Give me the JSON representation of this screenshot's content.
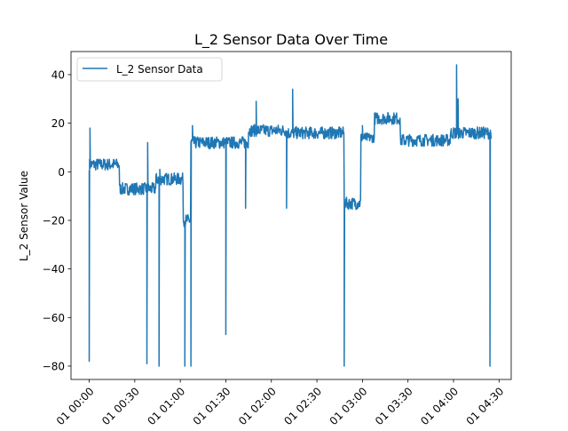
{
  "chart_data": {
    "type": "line",
    "title": "L_2 Sensor Data Over Time",
    "xlabel": "",
    "ylabel": "L_2 Sensor Value",
    "x_tick_labels": [
      "01 00:00",
      "01 00:30",
      "01 01:00",
      "01 01:30",
      "01 02:00",
      "01 02:30",
      "01 03:00",
      "01 03:30",
      "01 04:00",
      "01 04:30"
    ],
    "x_ticks_minutes": [
      0,
      30,
      60,
      90,
      120,
      150,
      180,
      210,
      240,
      270
    ],
    "xlim_minutes": [
      -12,
      278
    ],
    "y_ticks": [
      -80,
      -60,
      -40,
      -20,
      0,
      20,
      40
    ],
    "ylim": [
      -85.5,
      49.5
    ],
    "grid": false,
    "legend": {
      "position": "top-left",
      "entries": [
        "L_2 Sensor Data"
      ]
    },
    "colors": {
      "series": "#1f77b4"
    },
    "series": [
      {
        "name": "L_2 Sensor Data",
        "segments": [
          {
            "t0": 0,
            "t1": 20,
            "level": 3,
            "band": 5
          },
          {
            "t0": 20,
            "t1": 44,
            "level": -7,
            "band": 5
          },
          {
            "t0": 44,
            "t1": 62,
            "level": -3,
            "band": 5
          },
          {
            "t0": 62,
            "t1": 67,
            "level": -20,
            "band": 5
          },
          {
            "t0": 67,
            "t1": 105,
            "level": 12,
            "band": 5
          },
          {
            "t0": 105,
            "t1": 130,
            "level": 17,
            "band": 5
          },
          {
            "t0": 130,
            "t1": 168,
            "level": 16,
            "band": 5
          },
          {
            "t0": 168,
            "t1": 179,
            "level": -13,
            "band": 5
          },
          {
            "t0": 179,
            "t1": 188,
            "level": 14,
            "band": 4
          },
          {
            "t0": 188,
            "t1": 205,
            "level": 22,
            "band": 5
          },
          {
            "t0": 205,
            "t1": 238,
            "level": 13,
            "band": 5
          },
          {
            "t0": 238,
            "t1": 265,
            "level": 16,
            "band": 5
          }
        ],
        "spikes": [
          {
            "t": 0,
            "value": -78
          },
          {
            "t": 0.5,
            "value": 18
          },
          {
            "t": 38,
            "value": -79
          },
          {
            "t": 38.5,
            "value": 12
          },
          {
            "t": 46,
            "value": -80
          },
          {
            "t": 46.5,
            "value": 1
          },
          {
            "t": 63,
            "value": -80
          },
          {
            "t": 67,
            "value": -80
          },
          {
            "t": 68,
            "value": 19
          },
          {
            "t": 90,
            "value": -67
          },
          {
            "t": 103,
            "value": -15
          },
          {
            "t": 110,
            "value": 29
          },
          {
            "t": 130,
            "value": -15
          },
          {
            "t": 134,
            "value": 34
          },
          {
            "t": 168,
            "value": -80
          },
          {
            "t": 180,
            "value": 19
          },
          {
            "t": 242,
            "value": 44
          },
          {
            "t": 243,
            "value": 30
          },
          {
            "t": 264,
            "value": -80
          }
        ]
      }
    ]
  }
}
